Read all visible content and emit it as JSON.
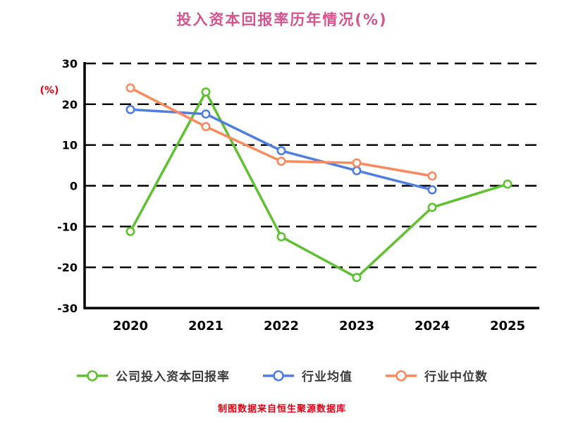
{
  "title": "投入资本回报率历年情况(%)",
  "footer": "制图数据来自恒生聚源数据库",
  "colors": {
    "title": "#d4548f",
    "footer": "#e60012",
    "ylabel": "#e60012",
    "axis": "#000000",
    "legend_text": "#3d3d3d"
  },
  "chart_data": {
    "type": "line",
    "title": "投入资本回报率历年情况(%)",
    "xlabel": "",
    "ylabel": "(%)",
    "x": [
      "2020",
      "2021",
      "2022",
      "2023",
      "2024",
      "2025"
    ],
    "ylim": [
      -30,
      30
    ],
    "yticks": [
      30,
      20,
      10,
      0,
      -10,
      -20,
      -30
    ],
    "grid": "dashed-horizontal",
    "legend_position": "bottom",
    "series": [
      {
        "name": "公司投入资本回报率",
        "color": "#5fc131",
        "values": [
          -11.2,
          23.0,
          -12.5,
          -22.5,
          -5.3,
          0.4
        ]
      },
      {
        "name": "行业均值",
        "color": "#4f7ee0",
        "values": [
          18.7,
          17.6,
          8.6,
          3.7,
          -1.0,
          null
        ]
      },
      {
        "name": "行业中位数",
        "color": "#f88a5e",
        "values": [
          24.0,
          14.5,
          6.0,
          5.6,
          2.4,
          null
        ]
      }
    ]
  }
}
